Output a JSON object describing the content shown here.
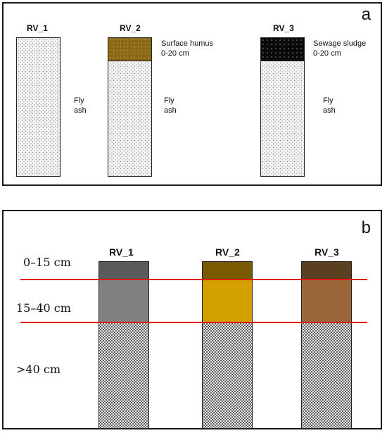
{
  "panel_a": {
    "label": "a",
    "columns": [
      {
        "name": "RV_1",
        "top_layer": null,
        "side_label": [
          "Fly",
          "ash"
        ]
      },
      {
        "name": "RV_2",
        "top_layer": {
          "label": [
            "Surface humus",
            "0-20 cm"
          ],
          "color": "#8b6914"
        },
        "side_label": [
          "Fly",
          "ash"
        ]
      },
      {
        "name": "RV_3",
        "top_layer": {
          "label": [
            "Sewage sludge",
            "0-20 cm"
          ],
          "color": "#0a0a0a"
        },
        "side_label": [
          "Fly",
          "ash"
        ]
      }
    ]
  },
  "panel_b": {
    "label": "b",
    "depth_labels": [
      "0–15 cm",
      "15–40 cm",
      ">40 cm"
    ],
    "columns": [
      {
        "name": "RV_1",
        "layer_0_15_color": "#5a5a5a",
        "layer_15_40_color": "#808080"
      },
      {
        "name": "RV_2",
        "layer_0_15_color": "#7a5a00",
        "layer_15_40_color": "#d4a000"
      },
      {
        "name": "RV_3",
        "layer_0_15_color": "#5a4020",
        "layer_15_40_color": "#9a6838"
      }
    ],
    "boundary_line_color": "#e01818"
  }
}
